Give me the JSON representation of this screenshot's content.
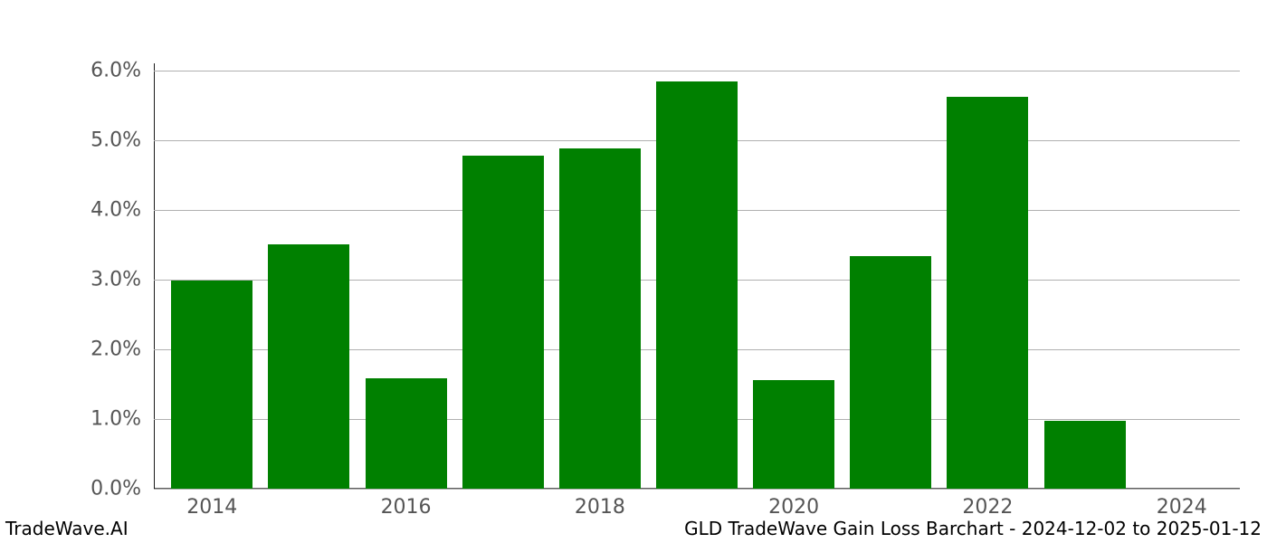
{
  "chart": {
    "type": "bar",
    "background_color": "#ffffff",
    "grid_color": "#b0b0b0",
    "tick_color": "#555555",
    "tick_fontsize": 22,
    "footer_fontsize": 20,
    "bar_color": "#008000",
    "bar_width_years": 0.84,
    "ylim": [
      0.0,
      6.1
    ],
    "ytick_step": 1.0,
    "yticks": [
      {
        "v": 0.0,
        "label": "0.0%"
      },
      {
        "v": 1.0,
        "label": "1.0%"
      },
      {
        "v": 2.0,
        "label": "2.0%"
      },
      {
        "v": 3.0,
        "label": "3.0%"
      },
      {
        "v": 4.0,
        "label": "4.0%"
      },
      {
        "v": 5.0,
        "label": "5.0%"
      },
      {
        "v": 6.0,
        "label": "6.0%"
      }
    ],
    "x_range_years": [
      2013.4,
      2024.6
    ],
    "xticks": [
      {
        "v": 2014,
        "label": "2014"
      },
      {
        "v": 2016,
        "label": "2016"
      },
      {
        "v": 2018,
        "label": "2018"
      },
      {
        "v": 2020,
        "label": "2020"
      },
      {
        "v": 2022,
        "label": "2022"
      },
      {
        "v": 2024,
        "label": "2024"
      }
    ],
    "bars": [
      {
        "year": 2014,
        "value": 2.98
      },
      {
        "year": 2015,
        "value": 3.5
      },
      {
        "year": 2016,
        "value": 1.58
      },
      {
        "year": 2017,
        "value": 4.78
      },
      {
        "year": 2018,
        "value": 4.88
      },
      {
        "year": 2019,
        "value": 5.84
      },
      {
        "year": 2020,
        "value": 1.56
      },
      {
        "year": 2021,
        "value": 3.33
      },
      {
        "year": 2022,
        "value": 5.62
      },
      {
        "year": 2023,
        "value": 0.98
      },
      {
        "year": 2024,
        "value": 0.0
      }
    ],
    "footer_left": "TradeWave.AI",
    "footer_right": "GLD TradeWave Gain Loss Barchart - 2024-12-02 to 2025-01-12"
  }
}
